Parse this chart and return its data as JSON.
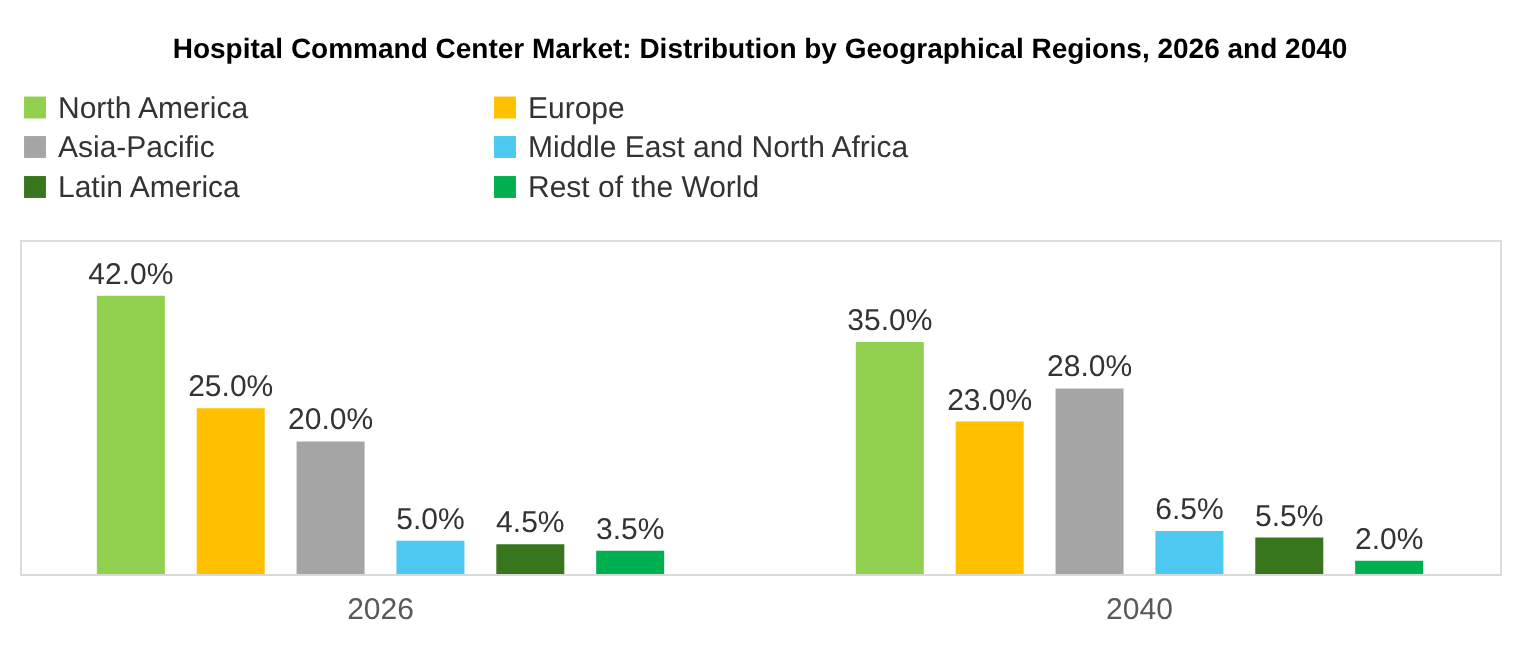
{
  "chart_data": {
    "type": "bar",
    "title": "Hospital Command Center Market: Distribution by Geographical Regions, 2026 and 2040",
    "categories": [
      "2026",
      "2040"
    ],
    "series": [
      {
        "name": "North America",
        "color": "#92d050",
        "values": [
          42.0,
          35.0
        ],
        "value_labels": [
          "42.0%",
          "35.0%"
        ]
      },
      {
        "name": "Europe",
        "color": "#ffc000",
        "values": [
          25.0,
          23.0
        ],
        "value_labels": [
          "25.0%",
          "23.0%"
        ]
      },
      {
        "name": "Asia-Pacific",
        "color": "#a5a5a5",
        "values": [
          20.0,
          28.0
        ],
        "value_labels": [
          "20.0%",
          "28.0%"
        ]
      },
      {
        "name": "Middle East and North Africa",
        "color": "#4dc8f0",
        "values": [
          5.0,
          6.5
        ],
        "value_labels": [
          "5.0%",
          "6.5%"
        ]
      },
      {
        "name": "Latin America",
        "color": "#38761d",
        "values": [
          4.5,
          5.5
        ],
        "value_labels": [
          "4.5%",
          "5.5%"
        ]
      },
      {
        "name": "Rest of the World",
        "color": "#00b050",
        "values": [
          3.5,
          2.0
        ],
        "value_labels": [
          "3.5%",
          "2.0%"
        ]
      }
    ],
    "legend": "top",
    "grid": false,
    "tick_labels": "x"
  }
}
